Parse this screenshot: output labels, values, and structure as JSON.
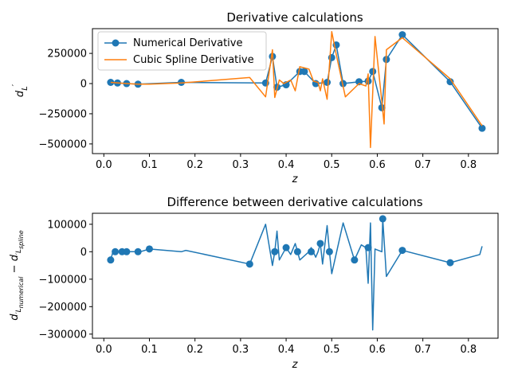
{
  "colors": {
    "numerical": "#1f77b4",
    "spline": "#ff7f0e",
    "difference": "#1f77b4"
  },
  "chart_data": [
    {
      "type": "line",
      "title": "Derivative calculations",
      "xlabel": "z",
      "ylabel": "d'_L",
      "xlim": [
        -0.025,
        0.865
      ],
      "ylim": [
        -580000,
        455000
      ],
      "xticks": [
        0.0,
        0.1,
        0.2,
        0.3,
        0.4,
        0.5,
        0.6,
        0.7,
        0.8
      ],
      "xtick_labels": [
        "0.0",
        "0.1",
        "0.2",
        "0.3",
        "0.4",
        "0.5",
        "0.6",
        "0.7",
        "0.8"
      ],
      "yticks": [
        -500000,
        -250000,
        0,
        250000
      ],
      "ytick_labels": [
        "−500000",
        "−250000",
        "0",
        "250000"
      ],
      "legend_position": "top-left",
      "series": [
        {
          "name": "Numerical Derivative",
          "marker": "circle",
          "color": "#1f77b4",
          "x": [
            0.015,
            0.03,
            0.05,
            0.075,
            0.17,
            0.355,
            0.37,
            0.38,
            0.4,
            0.43,
            0.44,
            0.465,
            0.49,
            0.5,
            0.51,
            0.525,
            0.56,
            0.58,
            0.59,
            0.61,
            0.62,
            0.655,
            0.76,
            0.83
          ],
          "y": [
            10000,
            5000,
            0,
            -5000,
            10000,
            5000,
            225000,
            -30000,
            -10000,
            100000,
            100000,
            0,
            10000,
            215000,
            320000,
            0,
            15000,
            20000,
            100000,
            -200000,
            200000,
            405000,
            15000,
            -370000
          ]
        },
        {
          "name": "Cubic Spline Derivative",
          "marker": "none",
          "color": "#ff7f0e",
          "x": [
            0.015,
            0.05,
            0.075,
            0.1,
            0.17,
            0.32,
            0.355,
            0.37,
            0.375,
            0.385,
            0.395,
            0.41,
            0.42,
            0.43,
            0.45,
            0.46,
            0.47,
            0.475,
            0.48,
            0.49,
            0.5,
            0.51,
            0.53,
            0.56,
            0.575,
            0.58,
            0.585,
            0.595,
            0.61,
            0.615,
            0.62,
            0.655,
            0.76,
            0.83
          ],
          "y": [
            10000,
            0,
            -5000,
            -5000,
            5000,
            50000,
            -110000,
            280000,
            -115000,
            30000,
            0,
            30000,
            -60000,
            140000,
            120000,
            20000,
            10000,
            -60000,
            40000,
            -130000,
            430000,
            240000,
            -110000,
            0,
            -20000,
            80000,
            -530000,
            390000,
            -150000,
            -335000,
            280000,
            380000,
            40000,
            -350000
          ]
        }
      ]
    },
    {
      "type": "line",
      "title": "Difference between derivative calculations",
      "xlabel": "z",
      "ylabel": "d'_L numerical − d'_L spline",
      "ylabel_base": "d",
      "ylabel_sub": "'L",
      "ylabel_sub_a": "numerical",
      "ylabel_sub_b": "spline",
      "ylabel_minus": "−",
      "xlim": [
        -0.025,
        0.865
      ],
      "ylim": [
        -315000,
        140000
      ],
      "xticks": [
        0.0,
        0.1,
        0.2,
        0.3,
        0.4,
        0.5,
        0.6,
        0.7,
        0.8
      ],
      "xtick_labels": [
        "0.0",
        "0.1",
        "0.2",
        "0.3",
        "0.4",
        "0.5",
        "0.6",
        "0.7",
        "0.8"
      ],
      "yticks": [
        -300000,
        -200000,
        -100000,
        0,
        100000
      ],
      "ytick_labels": [
        "−300000",
        "−200000",
        "−100000",
        "0",
        "100000"
      ],
      "series": [
        {
          "name": "",
          "color": "#1f77b4",
          "x": [
            0.015,
            0.02,
            0.025,
            0.04,
            0.05,
            0.075,
            0.08,
            0.1,
            0.17,
            0.18,
            0.32,
            0.355,
            0.37,
            0.375,
            0.38,
            0.385,
            0.395,
            0.4,
            0.41,
            0.42,
            0.425,
            0.43,
            0.45,
            0.455,
            0.465,
            0.47,
            0.475,
            0.48,
            0.49,
            0.495,
            0.5,
            0.525,
            0.55,
            0.565,
            0.575,
            0.58,
            0.585,
            0.59,
            0.595,
            0.61,
            0.612,
            0.62,
            0.655,
            0.76,
            0.825,
            0.83
          ],
          "y": [
            -30000,
            0,
            0,
            0,
            0,
            0,
            0,
            10000,
            0,
            5000,
            -45000,
            100000,
            -50000,
            0,
            75000,
            -30000,
            0,
            15000,
            -10000,
            30000,
            0,
            -30000,
            0,
            15000,
            -20000,
            0,
            30000,
            -45000,
            95000,
            0,
            -80000,
            105000,
            -30000,
            25000,
            15000,
            -115000,
            105000,
            -285000,
            10000,
            0,
            120000,
            -90000,
            5000,
            -40000,
            -10000,
            20000
          ]
        }
      ],
      "marker_x": [
        0.015,
        0.025,
        0.04,
        0.05,
        0.075,
        0.1,
        0.32,
        0.375,
        0.4,
        0.425,
        0.455,
        0.475,
        0.495,
        0.55,
        0.58,
        0.612,
        0.655,
        0.76
      ],
      "marker_y": [
        -30000,
        0,
        0,
        0,
        0,
        10000,
        -45000,
        0,
        15000,
        0,
        0,
        30000,
        0,
        -30000,
        15000,
        120000,
        5000,
        -40000
      ]
    }
  ]
}
